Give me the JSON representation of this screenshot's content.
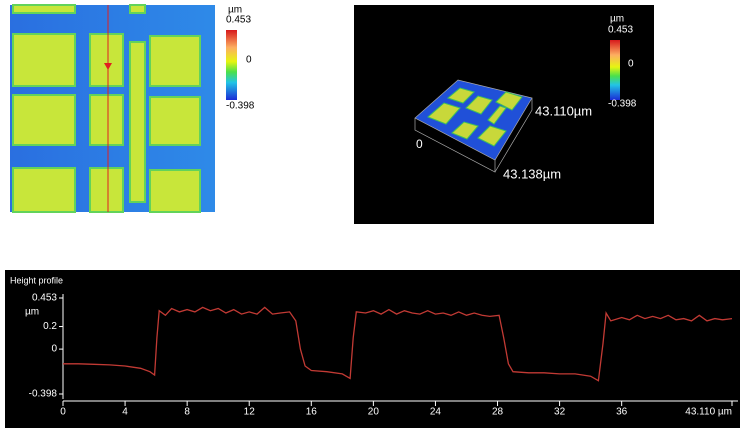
{
  "height_map": {
    "unit": "µm",
    "max": "0.453",
    "mid": "0",
    "min": "-0.398"
  },
  "view_3d": {
    "unit": "µm",
    "max": "0.453",
    "mid": "0",
    "min": "-0.398",
    "y_extent": "43.110µm",
    "x_extent": "43.138µm",
    "origin": "0"
  },
  "chart_data": {
    "type": "line",
    "title": "Height profile",
    "y_label": "µm",
    "color": "#c23a34",
    "x": [
      0,
      1,
      2,
      3,
      4,
      5,
      5.6,
      5.9,
      6.05,
      6.2,
      6.6,
      7,
      7.5,
      8,
      8.5,
      9,
      9.5,
      10,
      10.5,
      11,
      11.5,
      12,
      12.5,
      13,
      13.5,
      14,
      14.6,
      15,
      15.3,
      15.6,
      16,
      17,
      18,
      18.5,
      18.7,
      18.9,
      19.5,
      20,
      20.5,
      21,
      21.5,
      22,
      22.5,
      23,
      23.5,
      24,
      24.5,
      25,
      25.5,
      26,
      26.5,
      27,
      27.5,
      28.1,
      28.4,
      28.7,
      29,
      30,
      31,
      32,
      33,
      34,
      34.5,
      34.8,
      35,
      35.3,
      36,
      36.5,
      37,
      37.5,
      38,
      38.5,
      39,
      39.5,
      40,
      40.5,
      41,
      41.5,
      42,
      42.5,
      43.11
    ],
    "values": [
      -0.13,
      -0.13,
      -0.135,
      -0.14,
      -0.15,
      -0.17,
      -0.2,
      -0.23,
      0.1,
      0.34,
      0.3,
      0.36,
      0.33,
      0.35,
      0.33,
      0.37,
      0.34,
      0.36,
      0.32,
      0.35,
      0.31,
      0.33,
      0.31,
      0.37,
      0.31,
      0.32,
      0.33,
      0.25,
      0,
      -0.15,
      -0.19,
      -0.2,
      -0.22,
      -0.26,
      0.1,
      0.33,
      0.32,
      0.34,
      0.31,
      0.35,
      0.31,
      0.34,
      0.32,
      0.31,
      0.34,
      0.31,
      0.32,
      0.3,
      0.33,
      0.3,
      0.32,
      0.3,
      0.29,
      0.3,
      0.1,
      -0.13,
      -0.2,
      -0.21,
      -0.21,
      -0.22,
      -0.22,
      -0.24,
      -0.28,
      0.05,
      0.32,
      0.25,
      0.28,
      0.26,
      0.3,
      0.27,
      0.29,
      0.27,
      0.3,
      0.26,
      0.27,
      0.25,
      0.3,
      0.25,
      0.27,
      0.26,
      0.27
    ],
    "xlim": [
      0,
      43.11
    ],
    "ylim": [
      -0.398,
      0.453
    ],
    "xticks": [
      0,
      4,
      8,
      12,
      16,
      20,
      24,
      28,
      32,
      36,
      {
        "value": 43.11,
        "label": "43.110 µm"
      }
    ],
    "yticks": [
      0.453,
      0.2,
      0,
      -0.398
    ]
  }
}
